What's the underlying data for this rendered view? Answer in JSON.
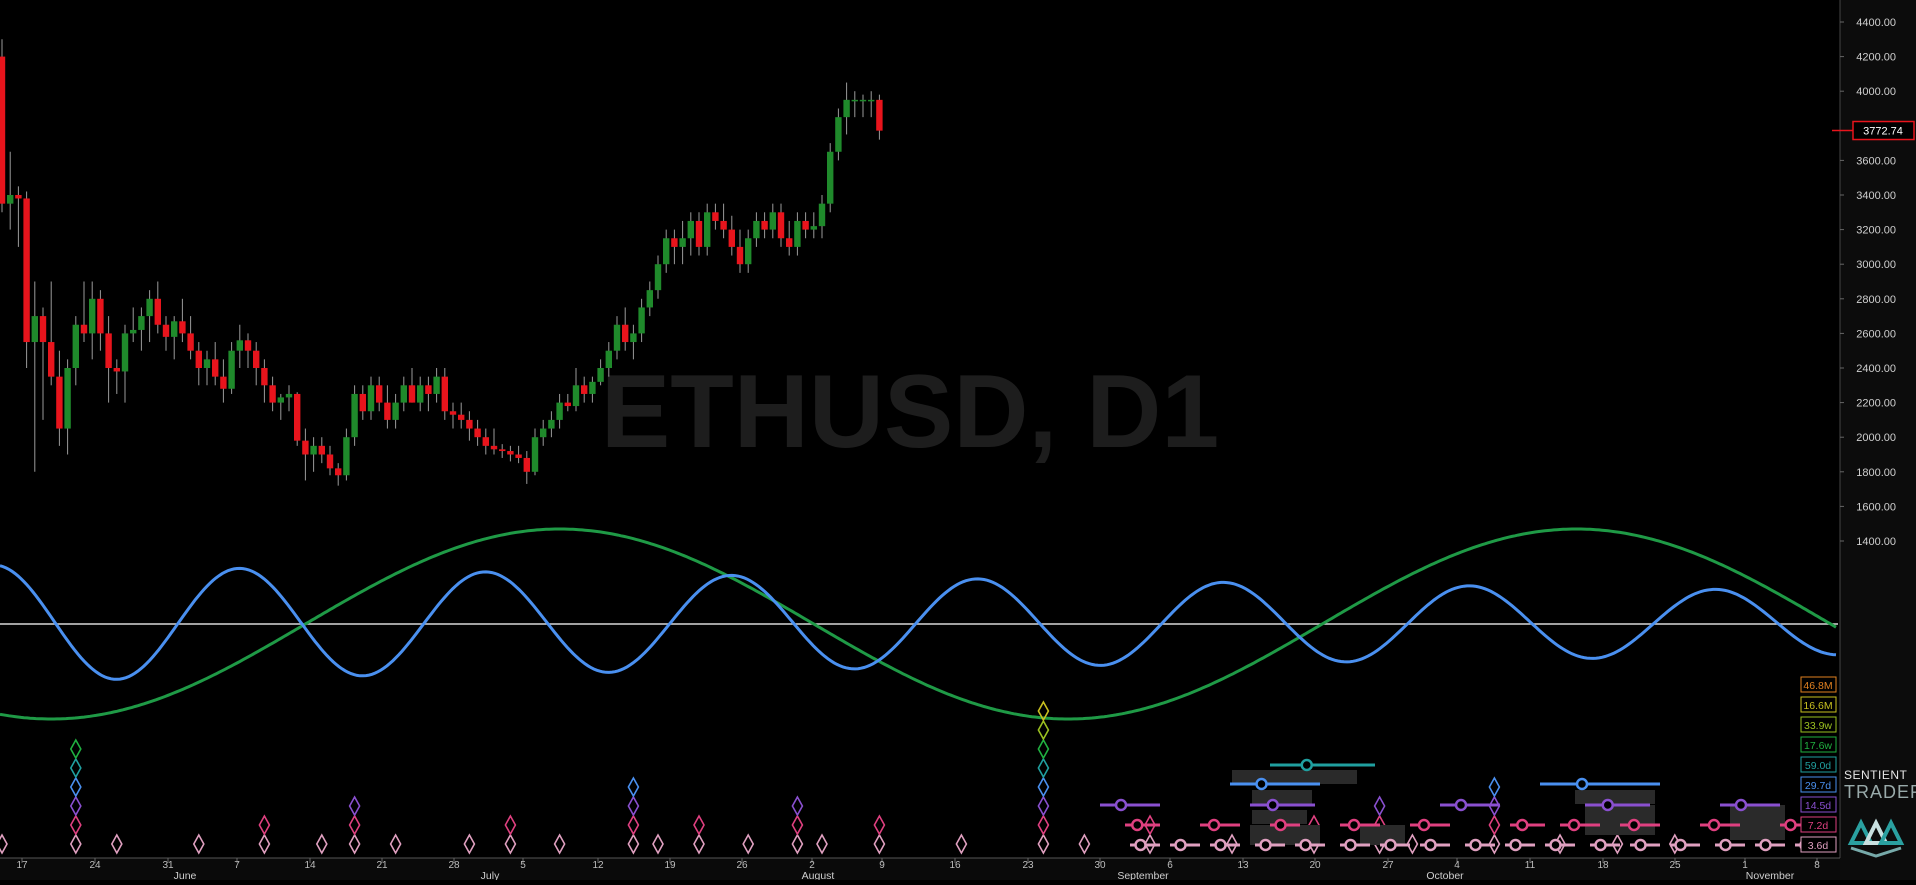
{
  "chart_data": {
    "type": "candlestick",
    "symbol_title": "ETHUSD, D1",
    "current_price": "3772.74",
    "y_axis": {
      "min": 1200,
      "max": 4500,
      "ticks": [
        "1400.00",
        "1600.00",
        "1800.00",
        "2000.00",
        "2200.00",
        "2400.00",
        "2600.00",
        "2800.00",
        "3000.00",
        "3200.00",
        "3400.00",
        "3600.00",
        "4000.00",
        "4200.00",
        "4400.00"
      ]
    },
    "x_day_labels": [
      "17",
      "24",
      "31",
      "7",
      "14",
      "21",
      "28",
      "5",
      "12",
      "19",
      "26",
      "2",
      "9",
      "16",
      "23",
      "30",
      "6",
      "13",
      "20",
      "27",
      "4",
      "11",
      "18",
      "25",
      "1",
      "8"
    ],
    "x_month_labels": [
      "June",
      "July",
      "August",
      "September",
      "October",
      "November"
    ],
    "colors": {
      "up": "#1f8a2b",
      "down": "#e8141c",
      "wick": "#9a9a9a",
      "cycle_long": "#1f9a46",
      "cycle_short": "#4a90f0",
      "hline": "#d8d8d8",
      "background": "#000000",
      "axis_panel": "#0c0c0c"
    },
    "candles": [
      [
        4200,
        4300,
        3300,
        3350
      ],
      [
        3350,
        3650,
        3200,
        3400
      ],
      [
        3400,
        3450,
        3100,
        3380
      ],
      [
        3380,
        3420,
        2400,
        2550
      ],
      [
        2550,
        2900,
        1800,
        2700
      ],
      [
        2700,
        2750,
        2100,
        2550
      ],
      [
        2550,
        2900,
        2300,
        2350
      ],
      [
        2350,
        2500,
        1950,
        2050
      ],
      [
        2050,
        2450,
        1900,
        2400
      ],
      [
        2400,
        2700,
        2300,
        2650
      ],
      [
        2650,
        2900,
        2550,
        2600
      ],
      [
        2600,
        2900,
        2450,
        2800
      ],
      [
        2800,
        2850,
        2500,
        2600
      ],
      [
        2600,
        2700,
        2200,
        2400
      ],
      [
        2400,
        2450,
        2250,
        2380
      ],
      [
        2380,
        2650,
        2200,
        2600
      ],
      [
        2600,
        2750,
        2550,
        2620
      ],
      [
        2620,
        2750,
        2500,
        2700
      ],
      [
        2700,
        2850,
        2550,
        2800
      ],
      [
        2800,
        2900,
        2600,
        2650
      ],
      [
        2650,
        2700,
        2500,
        2580
      ],
      [
        2580,
        2700,
        2450,
        2670
      ],
      [
        2670,
        2800,
        2550,
        2600
      ],
      [
        2600,
        2700,
        2450,
        2500
      ],
      [
        2500,
        2550,
        2300,
        2400
      ],
      [
        2400,
        2500,
        2300,
        2450
      ],
      [
        2450,
        2550,
        2300,
        2350
      ],
      [
        2350,
        2450,
        2200,
        2280
      ],
      [
        2280,
        2550,
        2250,
        2500
      ],
      [
        2500,
        2650,
        2400,
        2560
      ],
      [
        2560,
        2600,
        2400,
        2500
      ],
      [
        2500,
        2550,
        2300,
        2400
      ],
      [
        2400,
        2450,
        2200,
        2300
      ],
      [
        2300,
        2350,
        2150,
        2200
      ],
      [
        2200,
        2250,
        2100,
        2230
      ],
      [
        2230,
        2300,
        2150,
        2250
      ],
      [
        2250,
        2260,
        1950,
        1980
      ],
      [
        1980,
        2050,
        1750,
        1900
      ],
      [
        1900,
        2000,
        1800,
        1950
      ],
      [
        1950,
        2000,
        1850,
        1900
      ],
      [
        1900,
        1950,
        1780,
        1820
      ],
      [
        1820,
        1850,
        1720,
        1780
      ],
      [
        1780,
        2050,
        1750,
        2000
      ],
      [
        2000,
        2300,
        1950,
        2250
      ],
      [
        2250,
        2300,
        2100,
        2150
      ],
      [
        2150,
        2350,
        2100,
        2300
      ],
      [
        2300,
        2350,
        2150,
        2200
      ],
      [
        2200,
        2300,
        2050,
        2100
      ],
      [
        2100,
        2250,
        2050,
        2200
      ],
      [
        2200,
        2350,
        2150,
        2300
      ],
      [
        2300,
        2400,
        2200,
        2200
      ],
      [
        2200,
        2350,
        2150,
        2300
      ],
      [
        2300,
        2350,
        2150,
        2250
      ],
      [
        2250,
        2400,
        2200,
        2350
      ],
      [
        2350,
        2400,
        2100,
        2150
      ],
      [
        2150,
        2200,
        2050,
        2130
      ],
      [
        2130,
        2200,
        2050,
        2100
      ],
      [
        2100,
        2150,
        1980,
        2050
      ],
      [
        2050,
        2100,
        1950,
        2000
      ],
      [
        2000,
        2050,
        1900,
        1950
      ],
      [
        1950,
        2050,
        1900,
        1930
      ],
      [
        1930,
        1960,
        1880,
        1920
      ],
      [
        1920,
        1950,
        1860,
        1900
      ],
      [
        1900,
        1950,
        1850,
        1880
      ],
      [
        1880,
        1920,
        1730,
        1800
      ],
      [
        1800,
        2050,
        1780,
        2000
      ],
      [
        2000,
        2100,
        1950,
        2050
      ],
      [
        2050,
        2150,
        2000,
        2100
      ],
      [
        2100,
        2250,
        2050,
        2200
      ],
      [
        2200,
        2250,
        2150,
        2180
      ],
      [
        2180,
        2400,
        2150,
        2300
      ],
      [
        2300,
        2350,
        2200,
        2250
      ],
      [
        2250,
        2350,
        2200,
        2320
      ],
      [
        2320,
        2450,
        2300,
        2400
      ],
      [
        2400,
        2550,
        2350,
        2500
      ],
      [
        2500,
        2700,
        2450,
        2650
      ],
      [
        2650,
        2750,
        2500,
        2550
      ],
      [
        2550,
        2650,
        2450,
        2600
      ],
      [
        2600,
        2800,
        2550,
        2750
      ],
      [
        2750,
        2900,
        2700,
        2850
      ],
      [
        2850,
        3050,
        2800,
        3000
      ],
      [
        3000,
        3200,
        2950,
        3150
      ],
      [
        3150,
        3200,
        3000,
        3100
      ],
      [
        3100,
        3250,
        3000,
        3150
      ],
      [
        3150,
        3300,
        3050,
        3250
      ],
      [
        3250,
        3300,
        3050,
        3100
      ],
      [
        3100,
        3350,
        3050,
        3300
      ],
      [
        3300,
        3350,
        3200,
        3250
      ],
      [
        3250,
        3350,
        3150,
        3200
      ],
      [
        3200,
        3280,
        3050,
        3100
      ],
      [
        3100,
        3200,
        2950,
        3000
      ],
      [
        3000,
        3200,
        2950,
        3150
      ],
      [
        3150,
        3300,
        3100,
        3250
      ],
      [
        3250,
        3300,
        3150,
        3200
      ],
      [
        3200,
        3350,
        3150,
        3300
      ],
      [
        3300,
        3350,
        3100,
        3150
      ],
      [
        3150,
        3250,
        3050,
        3100
      ],
      [
        3100,
        3300,
        3050,
        3250
      ],
      [
        3250,
        3300,
        3150,
        3200
      ],
      [
        3200,
        3300,
        3150,
        3220
      ],
      [
        3220,
        3400,
        3150,
        3350
      ],
      [
        3350,
        3700,
        3300,
        3650
      ],
      [
        3650,
        3900,
        3600,
        3850
      ],
      [
        3850,
        4050,
        3750,
        3950
      ],
      [
        3950,
        4000,
        3850,
        3950
      ],
      [
        3950,
        3980,
        3850,
        3950
      ],
      [
        3950,
        4000,
        3850,
        3950
      ],
      [
        3950,
        3980,
        3720,
        3772
      ]
    ],
    "cycles": [
      {
        "name": "long",
        "amplitude": 0.5,
        "period_bars": 124,
        "phase_bar": 6,
        "color": "#1f9a46"
      },
      {
        "name": "short",
        "amplitude": 0.5,
        "period_bars": 30,
        "phase_bar": 14,
        "color": "#4a90f0"
      }
    ],
    "cycle_labels": [
      {
        "text": "46.8M",
        "color": "#e08020"
      },
      {
        "text": "16.6M",
        "color": "#c8c020"
      },
      {
        "text": "33.9w",
        "color": "#9ac020"
      },
      {
        "text": "17.6w",
        "color": "#20b040"
      },
      {
        "text": "59.0d",
        "color": "#20a0a0"
      },
      {
        "text": "29.7d",
        "color": "#4a90f0"
      },
      {
        "text": "14.5d",
        "color": "#8a50d0"
      },
      {
        "text": "7.2d",
        "color": "#e04080"
      },
      {
        "text": "3.6d",
        "color": "#e0a0c0"
      }
    ],
    "diamonds": {
      "colors": [
        "#e0a0c0",
        "#e04080",
        "#8a50d0",
        "#4a90f0",
        "#20a0a0",
        "#20b040",
        "#9ac020",
        "#c8c020"
      ],
      "columns": [
        {
          "bar": 0,
          "levels": 1
        },
        {
          "bar": 9,
          "levels": 6
        },
        {
          "bar": 14,
          "levels": 1
        },
        {
          "bar": 24,
          "levels": 1
        },
        {
          "bar": 32,
          "levels": 2
        },
        {
          "bar": 39,
          "levels": 1
        },
        {
          "bar": 43,
          "levels": 3
        },
        {
          "bar": 48,
          "levels": 1
        },
        {
          "bar": 57,
          "levels": 1
        },
        {
          "bar": 62,
          "levels": 2
        },
        {
          "bar": 68,
          "levels": 1
        },
        {
          "bar": 77,
          "levels": 4
        },
        {
          "bar": 80,
          "levels": 1
        },
        {
          "bar": 85,
          "levels": 2
        },
        {
          "bar": 91,
          "levels": 1
        },
        {
          "bar": 97,
          "levels": 3
        },
        {
          "bar": 100,
          "levels": 1
        },
        {
          "bar": 107,
          "levels": 2
        },
        {
          "bar": 117,
          "levels": 1
        },
        {
          "bar": 127,
          "levels": 8
        },
        {
          "bar": 132,
          "levels": 1
        },
        {
          "bar": 140,
          "levels": 2
        },
        {
          "bar": 150,
          "levels": 1
        },
        {
          "bar": 160,
          "levels": 2
        },
        {
          "bar": 168,
          "levels": 3
        },
        {
          "bar": 172,
          "levels": 1
        },
        {
          "bar": 182,
          "levels": 4
        },
        {
          "bar": 190,
          "levels": 1
        },
        {
          "bar": 197,
          "levels": 2
        },
        {
          "bar": 204,
          "levels": 1
        }
      ]
    },
    "brand": {
      "line1": "SENTIENT",
      "line2": "TRADER"
    }
  }
}
